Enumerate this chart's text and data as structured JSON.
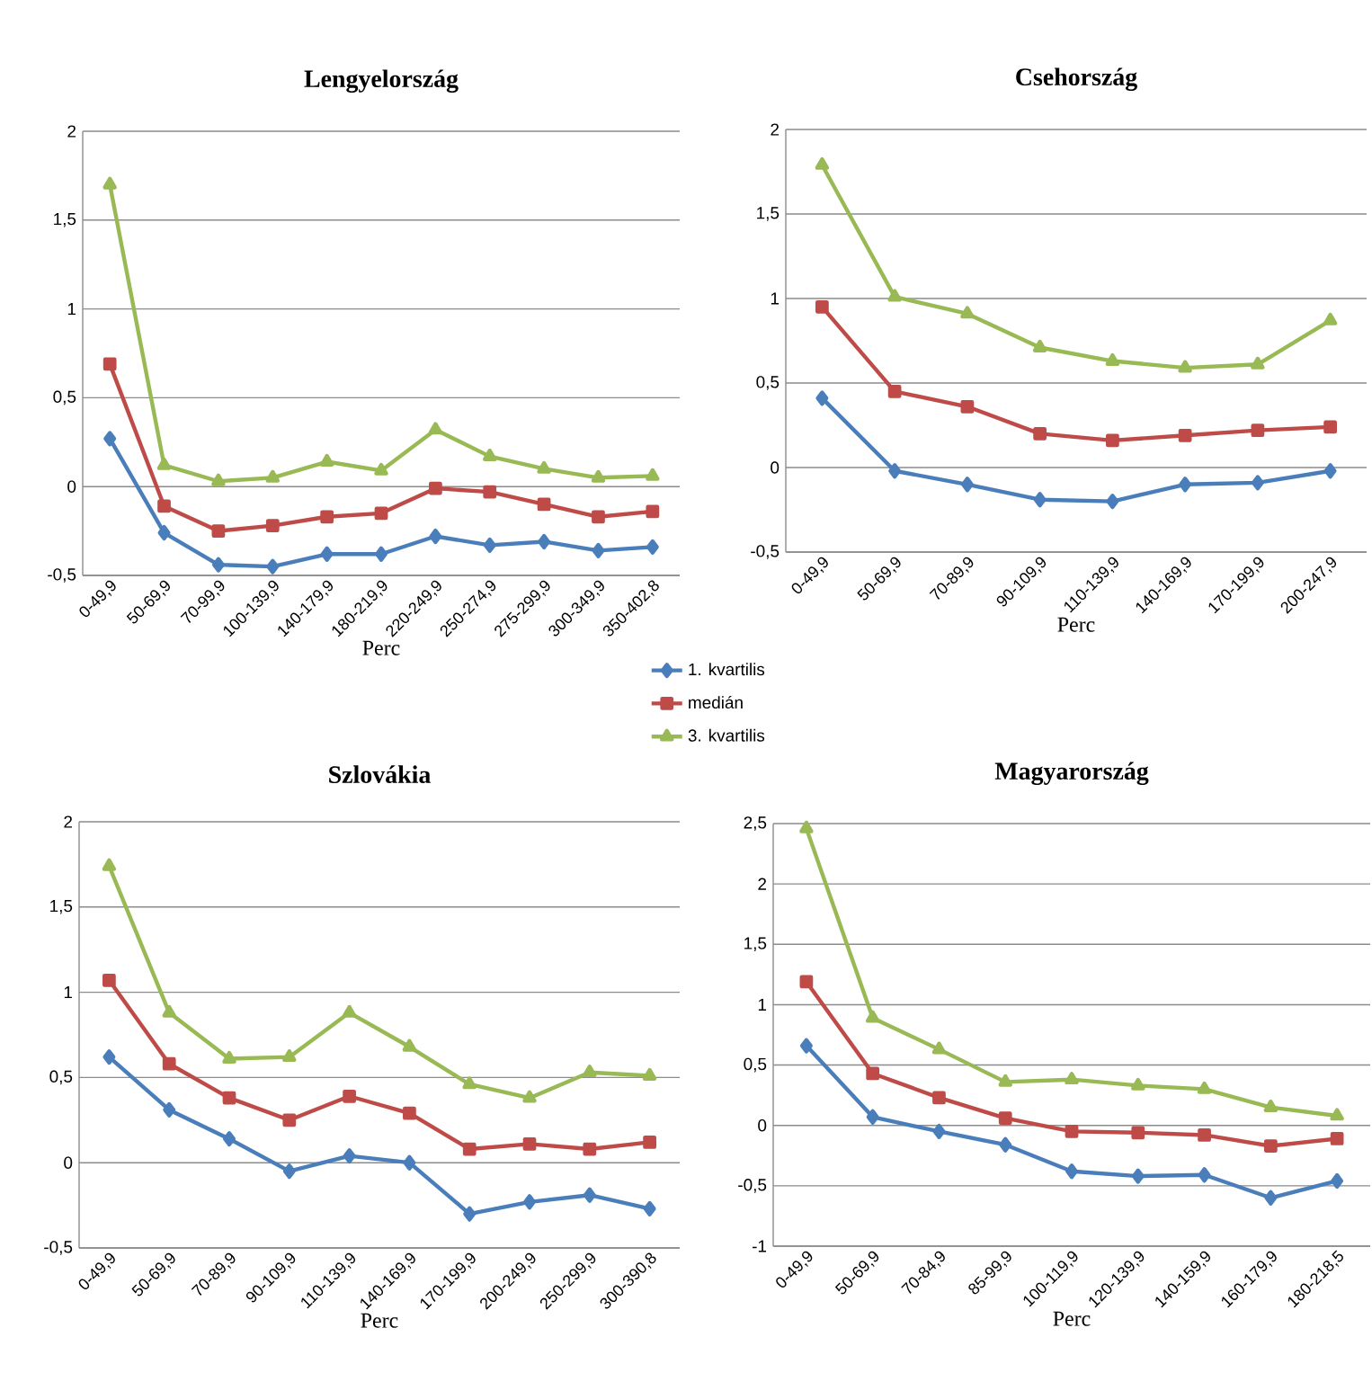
{
  "chart_data": [
    {
      "type": "line",
      "title": "Lengyelország",
      "xlabel": "Perc",
      "categories": [
        "0-49,9",
        "50-69,9",
        "70-99,9",
        "100-139,9",
        "140-179,9",
        "180-219,9",
        "220-249,9",
        "250-274,9",
        "275-299,9",
        "300-349,9",
        "350-402,8"
      ],
      "ylim": [
        -0.5,
        2
      ],
      "yticks": [
        {
          "value": -0.5,
          "label": "-0,5"
        },
        0,
        {
          "value": 0.5,
          "label": "0,5"
        },
        1,
        {
          "value": 1.5,
          "label": "1,5"
        },
        2
      ],
      "grid": "y",
      "legend": "bottom right",
      "series": [
        {
          "name": "1. kvartilis",
          "color": "#4a7ebb",
          "marker": "diamond",
          "values": [
            0.27,
            -0.26,
            -0.44,
            -0.45,
            -0.38,
            -0.38,
            -0.28,
            -0.33,
            -0.31,
            -0.36,
            -0.34
          ]
        },
        {
          "name": "medián",
          "color": "#be4b48",
          "marker": "square",
          "values": [
            0.69,
            -0.11,
            -0.25,
            -0.22,
            -0.17,
            -0.15,
            -0.01,
            -0.03,
            -0.1,
            -0.17,
            -0.14
          ]
        },
        {
          "name": "3. kvartilis",
          "color": "#98b954",
          "marker": "triangle",
          "values": [
            1.7,
            0.12,
            0.03,
            0.05,
            0.14,
            0.09,
            0.32,
            0.17,
            0.1,
            0.05,
            0.06
          ]
        }
      ]
    },
    {
      "type": "line",
      "title": "Csehország",
      "xlabel": "Perc",
      "categories": [
        "0-49,9",
        "50-69,9",
        "70-89,9",
        "90-109,9",
        "110-139,9",
        "140-169,9",
        "170-199,9",
        "200-247,9"
      ],
      "ylim": [
        -0.5,
        2
      ],
      "yticks": [
        {
          "value": -0.5,
          "label": "-0,5"
        },
        0,
        {
          "value": 0.5,
          "label": "0,5"
        },
        1,
        {
          "value": 1.5,
          "label": "1,5"
        },
        2
      ],
      "grid": "y",
      "series": [
        {
          "color": "#4a7ebb",
          "marker": "diamond",
          "values": [
            0.41,
            -0.02,
            -0.1,
            -0.19,
            -0.2,
            -0.1,
            -0.09,
            -0.02
          ]
        },
        {
          "color": "#be4b48",
          "marker": "square",
          "values": [
            0.95,
            0.45,
            0.36,
            0.2,
            0.16,
            0.19,
            0.22,
            0.24
          ]
        },
        {
          "color": "#98b954",
          "marker": "triangle",
          "values": [
            1.79,
            1.01,
            0.91,
            0.71,
            0.63,
            0.59,
            0.61,
            0.87
          ]
        }
      ]
    },
    {
      "type": "line",
      "title": "Szlovákia",
      "xlabel": "Perc",
      "categories": [
        "0-49,9",
        "50-69,9",
        "70-89,9",
        "90-109,9",
        "110-139,9",
        "140-169,9",
        "170-199,9",
        "200-249,9",
        "250-299,9",
        "300-390,8"
      ],
      "ylim": [
        -0.5,
        2
      ],
      "yticks": [
        {
          "value": -0.5,
          "label": "-0,5"
        },
        0,
        {
          "value": 0.5,
          "label": "0,5"
        },
        1,
        {
          "value": 1.5,
          "label": "1,5"
        },
        2
      ],
      "grid": "y",
      "series": [
        {
          "color": "#4a7ebb",
          "marker": "diamond",
          "values": [
            0.62,
            0.31,
            0.14,
            -0.05,
            0.04,
            0.0,
            -0.3,
            -0.23,
            -0.19,
            -0.27
          ]
        },
        {
          "color": "#be4b48",
          "marker": "square",
          "values": [
            1.07,
            0.58,
            0.38,
            0.25,
            0.39,
            0.29,
            0.08,
            0.11,
            0.08,
            0.12
          ]
        },
        {
          "color": "#98b954",
          "marker": "triangle",
          "values": [
            1.74,
            0.88,
            0.61,
            0.62,
            0.88,
            0.68,
            0.46,
            0.38,
            0.53,
            0.51
          ]
        }
      ]
    },
    {
      "type": "line",
      "title": "Magyarország",
      "xlabel": "Perc",
      "categories": [
        "0-49,9",
        "50-69,9",
        "70-84,9",
        "85-99,9",
        "100-119,9",
        "120-139,9",
        "140-159,9",
        "160-179,9",
        "180-218,5"
      ],
      "ylim": [
        -1,
        2.5
      ],
      "yticks": [
        -1,
        {
          "value": -0.5,
          "label": "-0,5"
        },
        0,
        {
          "value": 0.5,
          "label": "0,5"
        },
        1,
        {
          "value": 1.5,
          "label": "1,5"
        },
        2,
        {
          "value": 2.5,
          "label": "2,5"
        }
      ],
      "grid": "y",
      "series": [
        {
          "color": "#4a7ebb",
          "marker": "diamond",
          "values": [
            0.66,
            0.07,
            -0.05,
            -0.16,
            -0.38,
            -0.42,
            -0.41,
            -0.6,
            -0.46
          ]
        },
        {
          "color": "#be4b48",
          "marker": "square",
          "values": [
            1.19,
            0.43,
            0.23,
            0.06,
            -0.05,
            -0.06,
            -0.08,
            -0.17,
            -0.11
          ]
        },
        {
          "color": "#98b954",
          "marker": "triangle",
          "values": [
            2.46,
            0.89,
            0.63,
            0.36,
            0.38,
            0.33,
            0.3,
            0.15,
            0.08
          ]
        }
      ]
    }
  ]
}
